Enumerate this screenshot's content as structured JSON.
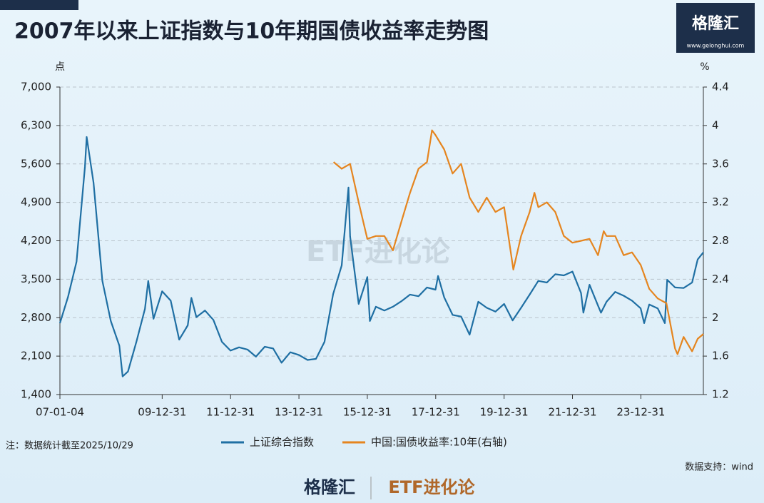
{
  "chart_data": {
    "type": "line",
    "title": "2007年以来上证指数与10年期国债收益率走势图",
    "y_unit": "点",
    "y2_unit": "%",
    "note": "注：数据统计截至2025/10/29",
    "source": "数据支持：wind",
    "brand": {
      "logo": "格隆汇",
      "url": "www.gelonghui.com",
      "column": "ETF进化论"
    },
    "xlim": [
      "07-01-04",
      "25-10-29"
    ],
    "xticks": [
      "07-01-04",
      "09-12-31",
      "11-12-31",
      "13-12-31",
      "15-12-31",
      "17-12-31",
      "19-12-31",
      "21-12-31",
      "23-12-31"
    ],
    "ylim": [
      1400,
      7000
    ],
    "yticks": [
      {
        "value": 1400,
        "label": "1,400"
      },
      {
        "value": 2100,
        "label": "2,100"
      },
      {
        "value": 2800,
        "label": "2,800"
      },
      {
        "value": 3500,
        "label": "3,500"
      },
      {
        "value": 4200,
        "label": "4,200"
      },
      {
        "value": 4900,
        "label": "4,900"
      },
      {
        "value": 5600,
        "label": "5,600"
      },
      {
        "value": 6300,
        "label": "6,300"
      },
      {
        "value": 7000,
        "label": "7,000"
      }
    ],
    "y2lim": [
      1.2,
      4.4
    ],
    "y2ticks": [
      1.2,
      1.6,
      2,
      2.4,
      2.8,
      3.2,
      3.6,
      4,
      4.4
    ],
    "grid": true,
    "legend": "bottom",
    "series": [
      {
        "name": "上证综合指数",
        "color": "#1f6fa3",
        "x": [
          "07-01-04",
          "07-03-30",
          "07-06-29",
          "07-09-28",
          "07-10-16",
          "07-12-28",
          "08-03-31",
          "08-06-30",
          "08-09-30",
          "08-11-04",
          "08-12-31",
          "09-03-31",
          "09-06-30",
          "09-08-04",
          "09-09-30",
          "09-12-31",
          "10-03-31",
          "10-06-30",
          "10-09-30",
          "10-11-08",
          "10-12-31",
          "11-03-31",
          "11-06-30",
          "11-09-30",
          "11-12-30",
          "12-03-30",
          "12-06-29",
          "12-09-28",
          "12-12-31",
          "13-03-29",
          "13-06-28",
          "13-09-30",
          "13-12-31",
          "14-03-31",
          "14-06-30",
          "14-09-30",
          "14-12-31",
          "15-03-31",
          "15-06-12",
          "15-06-30",
          "15-09-30",
          "15-12-31",
          "16-01-28",
          "16-03-31",
          "16-06-30",
          "16-09-30",
          "16-12-30",
          "17-03-31",
          "17-06-30",
          "17-09-29",
          "17-12-29",
          "18-01-26",
          "18-03-30",
          "18-06-29",
          "18-09-28",
          "18-12-28",
          "19-03-29",
          "19-06-28",
          "19-09-30",
          "19-12-31",
          "20-03-31",
          "20-06-30",
          "20-09-30",
          "20-12-31",
          "21-03-31",
          "21-06-30",
          "21-09-30",
          "21-12-31",
          "22-03-31",
          "22-04-26",
          "22-06-30",
          "22-09-30",
          "22-10-31",
          "22-12-30",
          "23-03-31",
          "23-06-30",
          "23-09-28",
          "23-12-29",
          "24-02-05",
          "24-03-29",
          "24-06-28",
          "24-09-13",
          "24-10-08",
          "24-12-31",
          "25-03-31",
          "25-06-30",
          "25-08-29",
          "25-10-29"
        ],
        "values": [
          2700,
          3180,
          3820,
          5550,
          6090,
          5260,
          3470,
          2740,
          2290,
          1730,
          1820,
          2370,
          2960,
          3470,
          2780,
          3280,
          3110,
          2400,
          2660,
          3160,
          2810,
          2930,
          2760,
          2360,
          2200,
          2260,
          2220,
          2090,
          2270,
          2240,
          1980,
          2170,
          2120,
          2030,
          2050,
          2360,
          3230,
          3750,
          5170,
          4280,
          3050,
          3540,
          2740,
          3000,
          2930,
          3000,
          3100,
          3220,
          3190,
          3350,
          3310,
          3560,
          3170,
          2850,
          2820,
          2490,
          3090,
          2980,
          2910,
          3050,
          2750,
          2980,
          3220,
          3470,
          3440,
          3590,
          3570,
          3640,
          3250,
          2890,
          3400,
          3020,
          2890,
          3090,
          3270,
          3200,
          3110,
          2970,
          2700,
          3040,
          2970,
          2700,
          3490,
          3350,
          3340,
          3440,
          3860,
          3990
        ]
      },
      {
        "name": "中国:国债收益率:10年(右轴)",
        "color": "#e5851f",
        "axis": "y2",
        "x": [
          "15-01-05",
          "15-03-31",
          "15-06-30",
          "15-09-30",
          "15-12-31",
          "16-03-31",
          "16-06-30",
          "16-09-30",
          "16-12-30",
          "17-03-31",
          "17-06-30",
          "17-09-29",
          "17-11-22",
          "17-12-29",
          "18-03-30",
          "18-06-29",
          "18-09-28",
          "18-12-28",
          "19-03-29",
          "19-06-28",
          "19-09-30",
          "19-12-31",
          "20-04-08",
          "20-06-30",
          "20-09-30",
          "20-11-20",
          "20-12-31",
          "21-03-31",
          "21-06-30",
          "21-09-30",
          "21-12-31",
          "22-03-31",
          "22-06-30",
          "22-09-30",
          "22-11-30",
          "22-12-30",
          "23-03-31",
          "23-06-30",
          "23-09-28",
          "23-12-29",
          "24-03-29",
          "24-06-28",
          "24-09-30",
          "24-12-31",
          "25-01-27",
          "25-03-31",
          "25-06-30",
          "25-08-29",
          "25-10-29"
        ],
        "values": [
          3.62,
          3.55,
          3.6,
          3.2,
          2.82,
          2.85,
          2.85,
          2.7,
          3.0,
          3.3,
          3.55,
          3.62,
          3.95,
          3.9,
          3.75,
          3.5,
          3.6,
          3.25,
          3.1,
          3.25,
          3.1,
          3.15,
          2.5,
          2.85,
          3.1,
          3.3,
          3.15,
          3.2,
          3.1,
          2.85,
          2.78,
          2.8,
          2.82,
          2.65,
          2.9,
          2.85,
          2.85,
          2.65,
          2.68,
          2.55,
          2.3,
          2.2,
          2.15,
          1.68,
          1.62,
          1.8,
          1.65,
          1.78,
          1.83
        ]
      }
    ]
  }
}
